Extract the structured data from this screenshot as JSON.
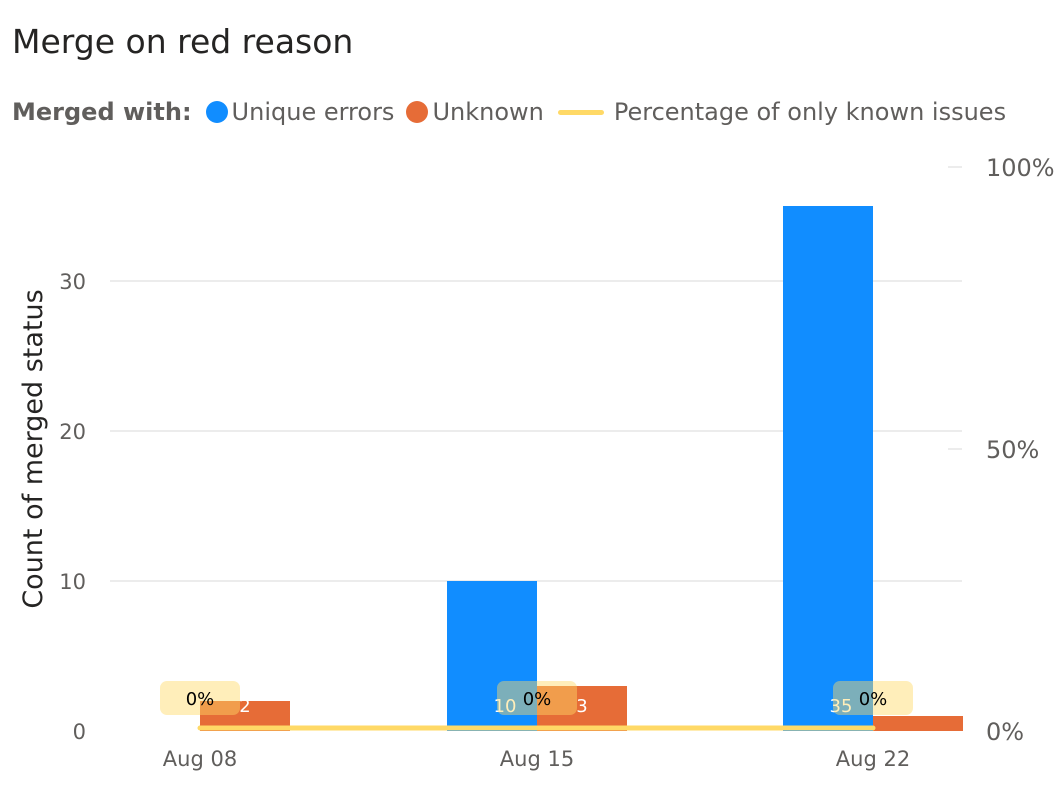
{
  "title": "Merge on red reason",
  "legend": {
    "title": "Merged with:",
    "items": [
      {
        "label": "Unique errors",
        "color": "#118dff",
        "shape": "dot"
      },
      {
        "label": "Unknown",
        "color": "#e66c37",
        "shape": "dot"
      },
      {
        "label": "Percentage of only known issues",
        "color": "#ffd966",
        "shape": "line"
      }
    ]
  },
  "chart_data": {
    "type": "bar",
    "categories": [
      "Aug 08",
      "Aug 15",
      "Aug 22"
    ],
    "series": [
      {
        "name": "Unique errors",
        "values": [
          0,
          10,
          35
        ],
        "color": "#118dff",
        "labels": [
          "",
          "10",
          "35"
        ]
      },
      {
        "name": "Unknown",
        "values": [
          2,
          3,
          1
        ],
        "color": "#e66c37",
        "labels": [
          "2",
          "3",
          ""
        ]
      }
    ],
    "line_series": {
      "name": "Percentage of only known issues",
      "values": [
        0,
        0,
        0
      ],
      "labels": [
        "0%",
        "0%",
        "0%"
      ],
      "color": "#ffd966",
      "axis": "right"
    },
    "ylabel": "Count of merged status",
    "ylim": [
      0,
      35
    ],
    "yticks": [
      0,
      10,
      20,
      30
    ],
    "y2ticks": [
      "0%",
      "50%",
      "100%"
    ],
    "y2ticks_values": [
      0,
      50,
      100
    ],
    "y2lim": [
      0,
      100
    ],
    "grid": true,
    "legend_position": "top-left"
  }
}
